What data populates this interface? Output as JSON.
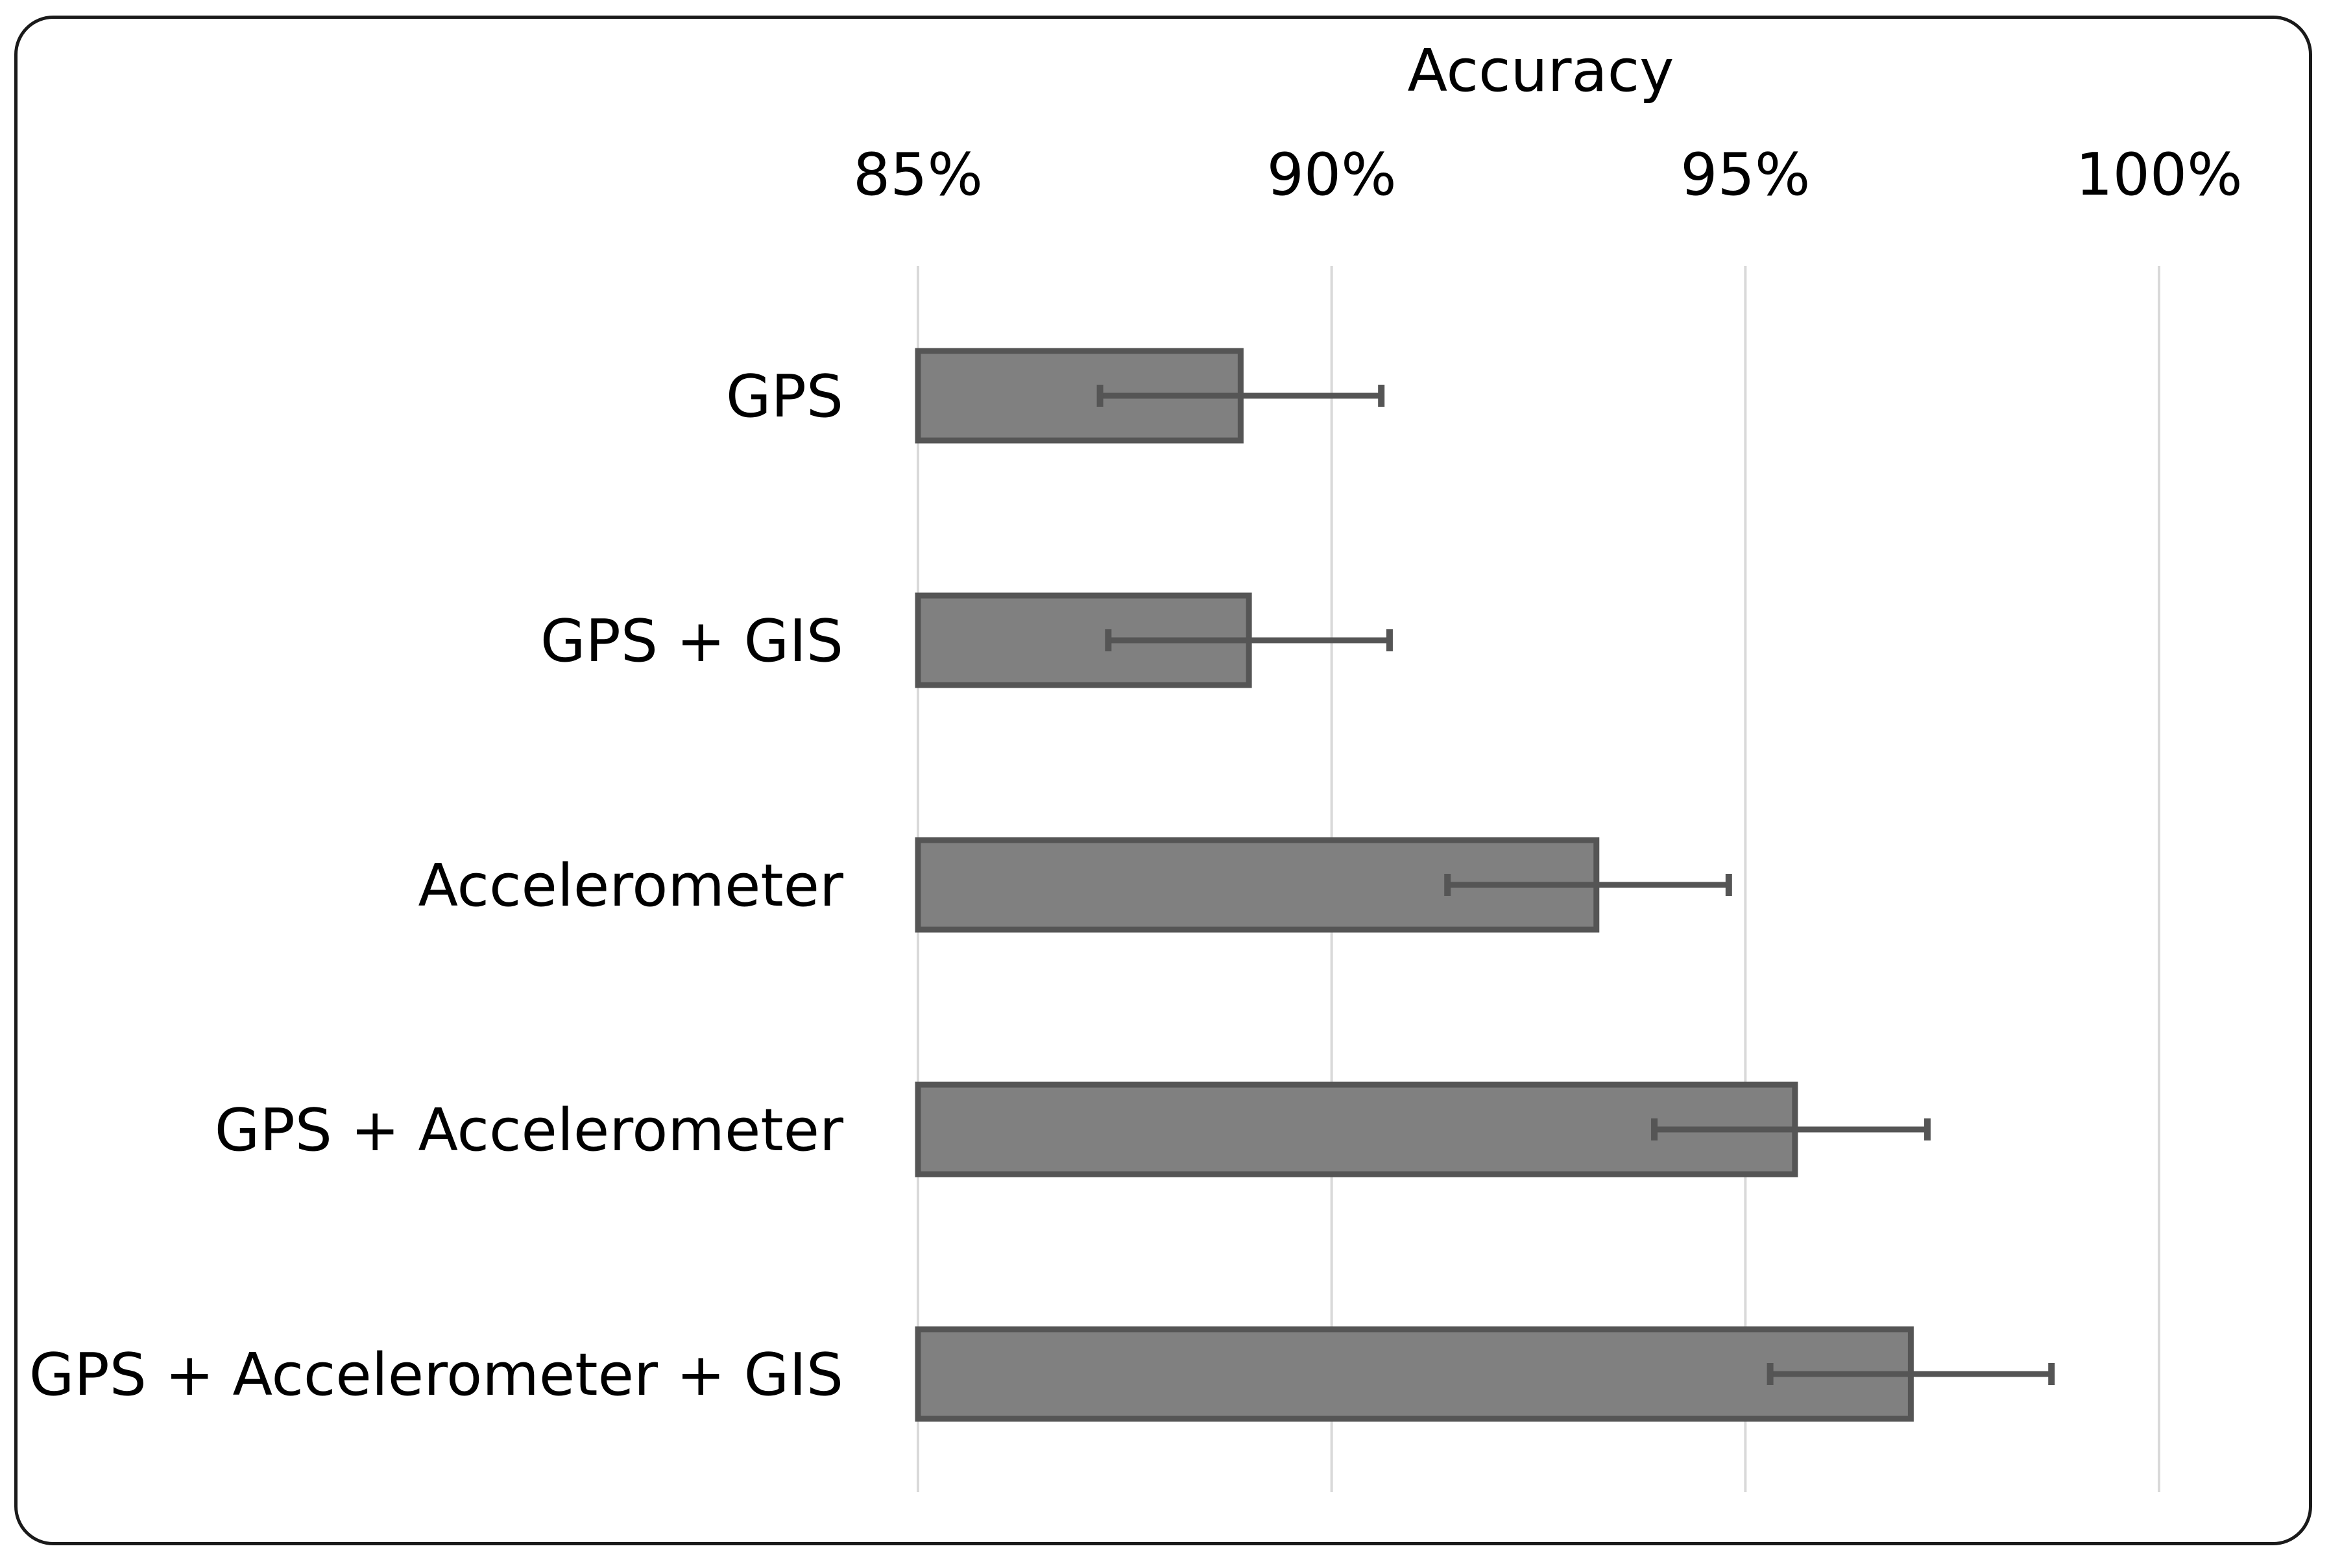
{
  "chart_data": {
    "type": "bar",
    "orientation": "horizontal",
    "title": "",
    "xlabel": "Accuracy",
    "ylabel": "",
    "x_axis_position": "top",
    "xlim": [
      0.85,
      1.0
    ],
    "ticks": [
      0.85,
      0.9,
      0.95,
      1.0
    ],
    "tick_labels": [
      "85%",
      "90%",
      "95%",
      "100%"
    ],
    "grid": "vertical",
    "legend": "none",
    "categories": [
      "GPS",
      "GPS + GIS",
      "Accelerometer",
      "GPS + Accelerometer",
      "GPS + Accelerometer + GIS"
    ],
    "values": [
      0.889,
      0.89,
      0.932,
      0.956,
      0.97
    ],
    "error_low": [
      0.872,
      0.873,
      0.914,
      0.939,
      0.953
    ],
    "error_high": [
      0.906,
      0.907,
      0.948,
      0.972,
      0.987
    ],
    "colors": {
      "bar_fill": "#808080",
      "bar_stroke": "#555555",
      "error_bar": "#555555",
      "grid": "#d9d9d9",
      "text": "#000000"
    }
  }
}
